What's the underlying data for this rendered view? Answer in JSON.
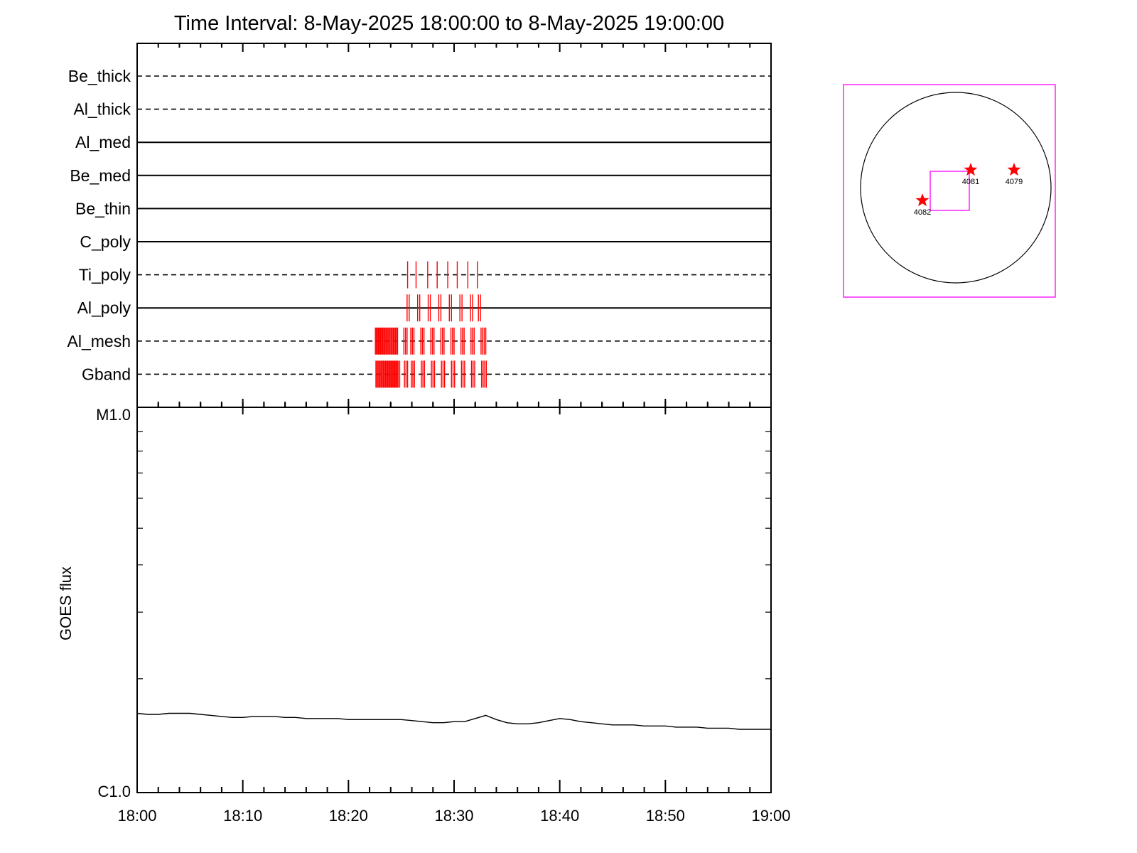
{
  "title": "Time Interval:  8-May-2025 18:00:00 to  8-May-2025 19:00:00",
  "chart_data": [
    {
      "type": "timeline",
      "panel": "filter-coverage",
      "x_range": [
        "18:00",
        "19:00"
      ],
      "filters": [
        {
          "name": "Be_thick",
          "line": "dashed",
          "marks": []
        },
        {
          "name": "Al_thick",
          "line": "dashed",
          "marks": []
        },
        {
          "name": "Al_med",
          "line": "solid",
          "marks": []
        },
        {
          "name": "Be_med",
          "line": "solid",
          "marks": []
        },
        {
          "name": "Be_thin",
          "line": "solid",
          "marks": []
        },
        {
          "name": "C_poly",
          "line": "solid",
          "marks": []
        },
        {
          "name": "Ti_poly",
          "line": "dashed",
          "marks": [
            25.6,
            26.4,
            27.5,
            28.4,
            29.4,
            30.3,
            31.3,
            32.2
          ]
        },
        {
          "name": "Al_poly",
          "line": "solid",
          "marks": [
            25.55,
            25.75,
            26.55,
            26.75,
            27.55,
            27.75,
            28.55,
            28.75,
            29.55,
            29.75,
            30.55,
            30.75,
            31.55,
            31.75,
            32.3,
            32.5
          ]
        },
        {
          "name": "Al_mesh",
          "line": "dashed",
          "marks": [
            22.55,
            22.65,
            22.75,
            22.85,
            22.95,
            23.05,
            23.15,
            23.25,
            23.35,
            23.45,
            23.55,
            23.65,
            23.75,
            23.85,
            23.95,
            24.05,
            24.15,
            24.25,
            24.35,
            24.45,
            24.55,
            24.65,
            25.25,
            25.4,
            25.55,
            25.9,
            26.05,
            26.2,
            26.85,
            27.0,
            27.15,
            27.8,
            27.95,
            28.1,
            28.75,
            28.9,
            29.05,
            29.7,
            29.85,
            30.0,
            30.65,
            30.8,
            30.95,
            31.6,
            31.75,
            31.9,
            32.55,
            32.7,
            32.85,
            33.0
          ]
        },
        {
          "name": "Gband",
          "line": "dashed",
          "marks": [
            22.6,
            22.7,
            22.8,
            22.9,
            23.0,
            23.1,
            23.2,
            23.3,
            23.4,
            23.5,
            23.6,
            23.7,
            23.8,
            23.9,
            24.0,
            24.1,
            24.2,
            24.3,
            24.4,
            24.5,
            24.6,
            24.7,
            24.85,
            25.3,
            25.45,
            25.6,
            25.95,
            26.1,
            26.25,
            26.9,
            27.05,
            27.2,
            27.85,
            28.0,
            28.15,
            28.8,
            28.95,
            29.1,
            29.75,
            29.9,
            30.05,
            30.7,
            30.85,
            31.0,
            31.65,
            31.8,
            31.95,
            32.6,
            32.75,
            32.9,
            33.05
          ]
        }
      ],
      "mark_color": "#ff0000"
    },
    {
      "type": "line",
      "panel": "goes",
      "ylabel": "GOES flux",
      "y_scale": "log",
      "ylim": [
        "C1.0",
        "M1.0"
      ],
      "y_tick_labels": [
        "M1.0",
        "C1.0"
      ],
      "x_tick_labels": [
        "18:00",
        "18:10",
        "18:20",
        "18:30",
        "18:40",
        "18:50",
        "19:00"
      ],
      "x_minutes": [
        0,
        1,
        2,
        3,
        4,
        5,
        6,
        7,
        8,
        9,
        10,
        11,
        12,
        13,
        14,
        15,
        16,
        17,
        18,
        19,
        20,
        21,
        22,
        23,
        24,
        25,
        26,
        27,
        28,
        29,
        30,
        31,
        32,
        33,
        34,
        35,
        36,
        37,
        38,
        39,
        40,
        41,
        42,
        43,
        44,
        45,
        46,
        47,
        48,
        49,
        50,
        51,
        52,
        53,
        54,
        55,
        56,
        57,
        58,
        59,
        60
      ],
      "flux_c_class": [
        1.62,
        1.61,
        1.61,
        1.62,
        1.62,
        1.62,
        1.61,
        1.6,
        1.59,
        1.58,
        1.58,
        1.59,
        1.59,
        1.59,
        1.58,
        1.58,
        1.57,
        1.57,
        1.57,
        1.57,
        1.56,
        1.56,
        1.56,
        1.56,
        1.56,
        1.56,
        1.55,
        1.54,
        1.53,
        1.53,
        1.54,
        1.54,
        1.57,
        1.6,
        1.56,
        1.53,
        1.52,
        1.52,
        1.53,
        1.55,
        1.57,
        1.56,
        1.54,
        1.53,
        1.52,
        1.51,
        1.51,
        1.51,
        1.5,
        1.5,
        1.5,
        1.49,
        1.49,
        1.49,
        1.48,
        1.48,
        1.48,
        1.47,
        1.47,
        1.47,
        1.47
      ],
      "line_color": "#000000"
    }
  ],
  "sun_map": {
    "box_color": "#ff00ff",
    "star_color": "#ff0000",
    "regions": [
      {
        "label": "4081"
      },
      {
        "label": "4079"
      },
      {
        "label": "4082"
      }
    ]
  }
}
